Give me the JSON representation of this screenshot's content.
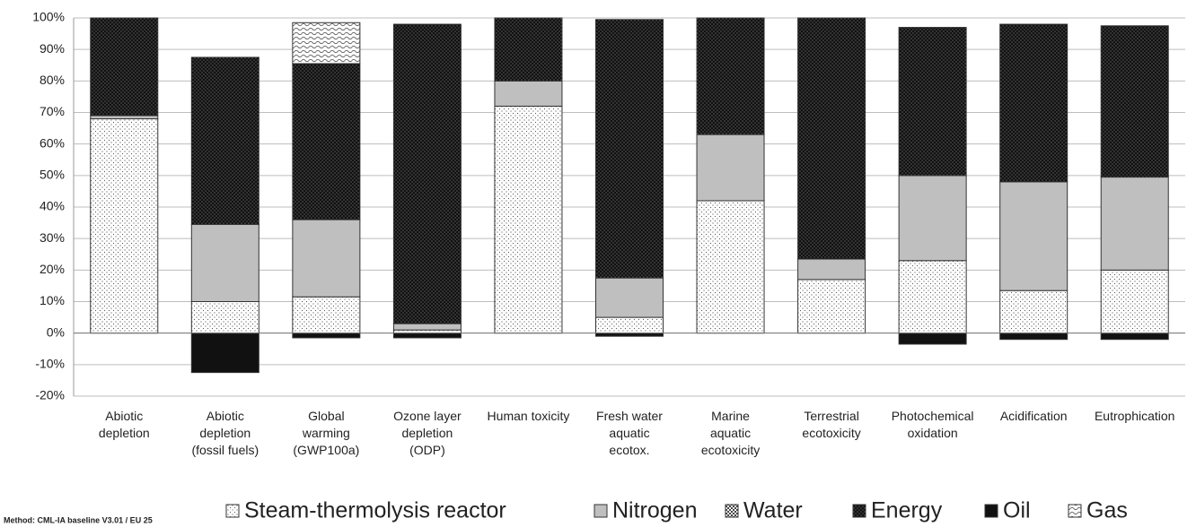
{
  "chart_data": {
    "type": "stacked_bar",
    "categories": [
      "Abiotic\ndepletion",
      "Abiotic\ndepletion\n(fossil fuels)",
      "Global\nwarming\n(GWP100a)",
      "Ozone layer\ndepletion\n(ODP)",
      "Human toxicity",
      "Fresh water\naquatic\necotox.",
      "Marine\naquatic\necotoxicity",
      "Terrestrial\necotoxicity",
      "Photochemical\noxidation",
      "Acidification",
      "Eutrophication"
    ],
    "series": [
      {
        "name": "Steam-thermolysis reactor",
        "color": "#ffffff",
        "pattern": "dots",
        "values": [
          68,
          10,
          11.5,
          1,
          72,
          5,
          42,
          17,
          23,
          13.5,
          20
        ]
      },
      {
        "name": "Nitrogen",
        "color": "#bfbfbf",
        "pattern": "solid",
        "values": [
          1,
          24.5,
          24.5,
          2,
          8,
          12.5,
          21,
          6.5,
          27,
          34.5,
          29.5
        ]
      },
      {
        "name": "Water",
        "color": "#ffffff",
        "pattern": "checker",
        "values": [
          0,
          0,
          0,
          0,
          0,
          0,
          0,
          0,
          0,
          0,
          0
        ]
      },
      {
        "name": "Energy",
        "color": "#111111",
        "pattern": "darkdots",
        "values": [
          31,
          53,
          49.5,
          95,
          20,
          82,
          37,
          76.5,
          47,
          50,
          48
        ]
      },
      {
        "name": "Oil",
        "color": "#111111",
        "pattern": "solid",
        "values": [
          0,
          -12.5,
          -1.5,
          -1.5,
          0,
          -1,
          0,
          0,
          -3.5,
          -2,
          -2
        ]
      },
      {
        "name": "Gas",
        "color": "#ffffff",
        "pattern": "waves",
        "values": [
          0,
          0,
          13,
          0,
          0,
          0,
          0,
          0,
          0,
          0,
          0
        ]
      }
    ],
    "ylim": [
      -20,
      100
    ],
    "yticks": [
      {
        "value": -20,
        "label": "-20%"
      },
      {
        "value": -10,
        "label": "-10%"
      },
      {
        "value": 0,
        "label": "0%"
      },
      {
        "value": 10,
        "label": "10%"
      },
      {
        "value": 20,
        "label": "20%"
      },
      {
        "value": 30,
        "label": "30%"
      },
      {
        "value": 40,
        "label": "40%"
      },
      {
        "value": 50,
        "label": "50%"
      },
      {
        "value": 60,
        "label": "60%"
      },
      {
        "value": 70,
        "label": "70%"
      },
      {
        "value": 80,
        "label": "80%"
      },
      {
        "value": 90,
        "label": "90%"
      },
      {
        "value": 100,
        "label": "100%"
      }
    ],
    "grid": true,
    "legend": "bottom",
    "note": "Method: CML-IA baseline V3.01 / EU 25"
  }
}
